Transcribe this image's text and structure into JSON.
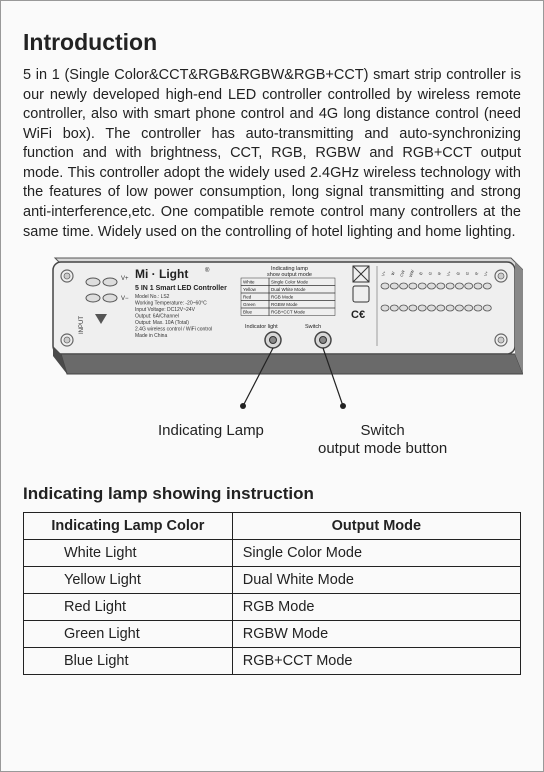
{
  "title": "Introduction",
  "intro_text": "5 in 1 (Single Color&CCT&RGB&RGBW&RGB+CCT) smart strip controller is our newly developed high-end LED controller controlled by wireless remote controller, also with smart phone control and 4G long distance control (need WiFi box). The controller has auto-transmitting and auto-synchronizing function and with brightness, CCT, RGB, RGBW and RGB+CCT output mode. This controller adopt the widely used 2.4GHz wireless technology with the features of low power consumption, long signal transmitting and strong anti-interference,etc. One compatible remote control many controllers at the same time. Widely used on the controlling of hotel lighting and home lighting.",
  "device": {
    "brand": "Mi · Light",
    "reg": "®",
    "name": "5 IN 1 Smart LED Controller",
    "specs": [
      "Model No.: LS2",
      "Working Temperature: -20~60°C",
      "Input Voltage: DC12V~24V",
      "Output: 6A/Channel",
      "Output: Max. 10A (Total)",
      "2.4G wireless control / WiFi control",
      "Made in China"
    ],
    "table_caption1": "Indicating lamp",
    "table_caption2": "show output mode",
    "mini_table": [
      [
        "White",
        "Single Color Mode"
      ],
      [
        "Yellow",
        "Dual White Mode"
      ],
      [
        "Red",
        "RGB Mode"
      ],
      [
        "Green",
        "RGBW Mode"
      ],
      [
        "Blue",
        "RGB+CCT Mode"
      ]
    ],
    "indicator_label": "Indicator light",
    "switch_label": "Switch",
    "pins": [
      "INPUT",
      "V+",
      "V-",
      "",
      "V+",
      "W",
      "CW",
      "WW",
      "B",
      "G",
      "R",
      "V+",
      "B",
      "G",
      "R",
      "V+"
    ]
  },
  "callouts": {
    "left": "Indicating Lamp",
    "right1": "Switch",
    "right2": "output mode button"
  },
  "table_title": "Indicating lamp showing instruction",
  "table_headers": [
    "Indicating Lamp Color",
    "Output Mode"
  ],
  "table_rows": [
    [
      "White Light",
      "Single Color Mode"
    ],
    [
      "Yellow Light",
      "Dual White Mode"
    ],
    [
      "Red Light",
      "RGB Mode"
    ],
    [
      "Green Light",
      "RGBW Mode"
    ],
    [
      "Blue  Light",
      "RGB+CCT Mode"
    ]
  ],
  "colors": {
    "border": "#222222",
    "device_fill": "#eeeeee",
    "device_stroke": "#444444",
    "shadow": "#555555"
  }
}
